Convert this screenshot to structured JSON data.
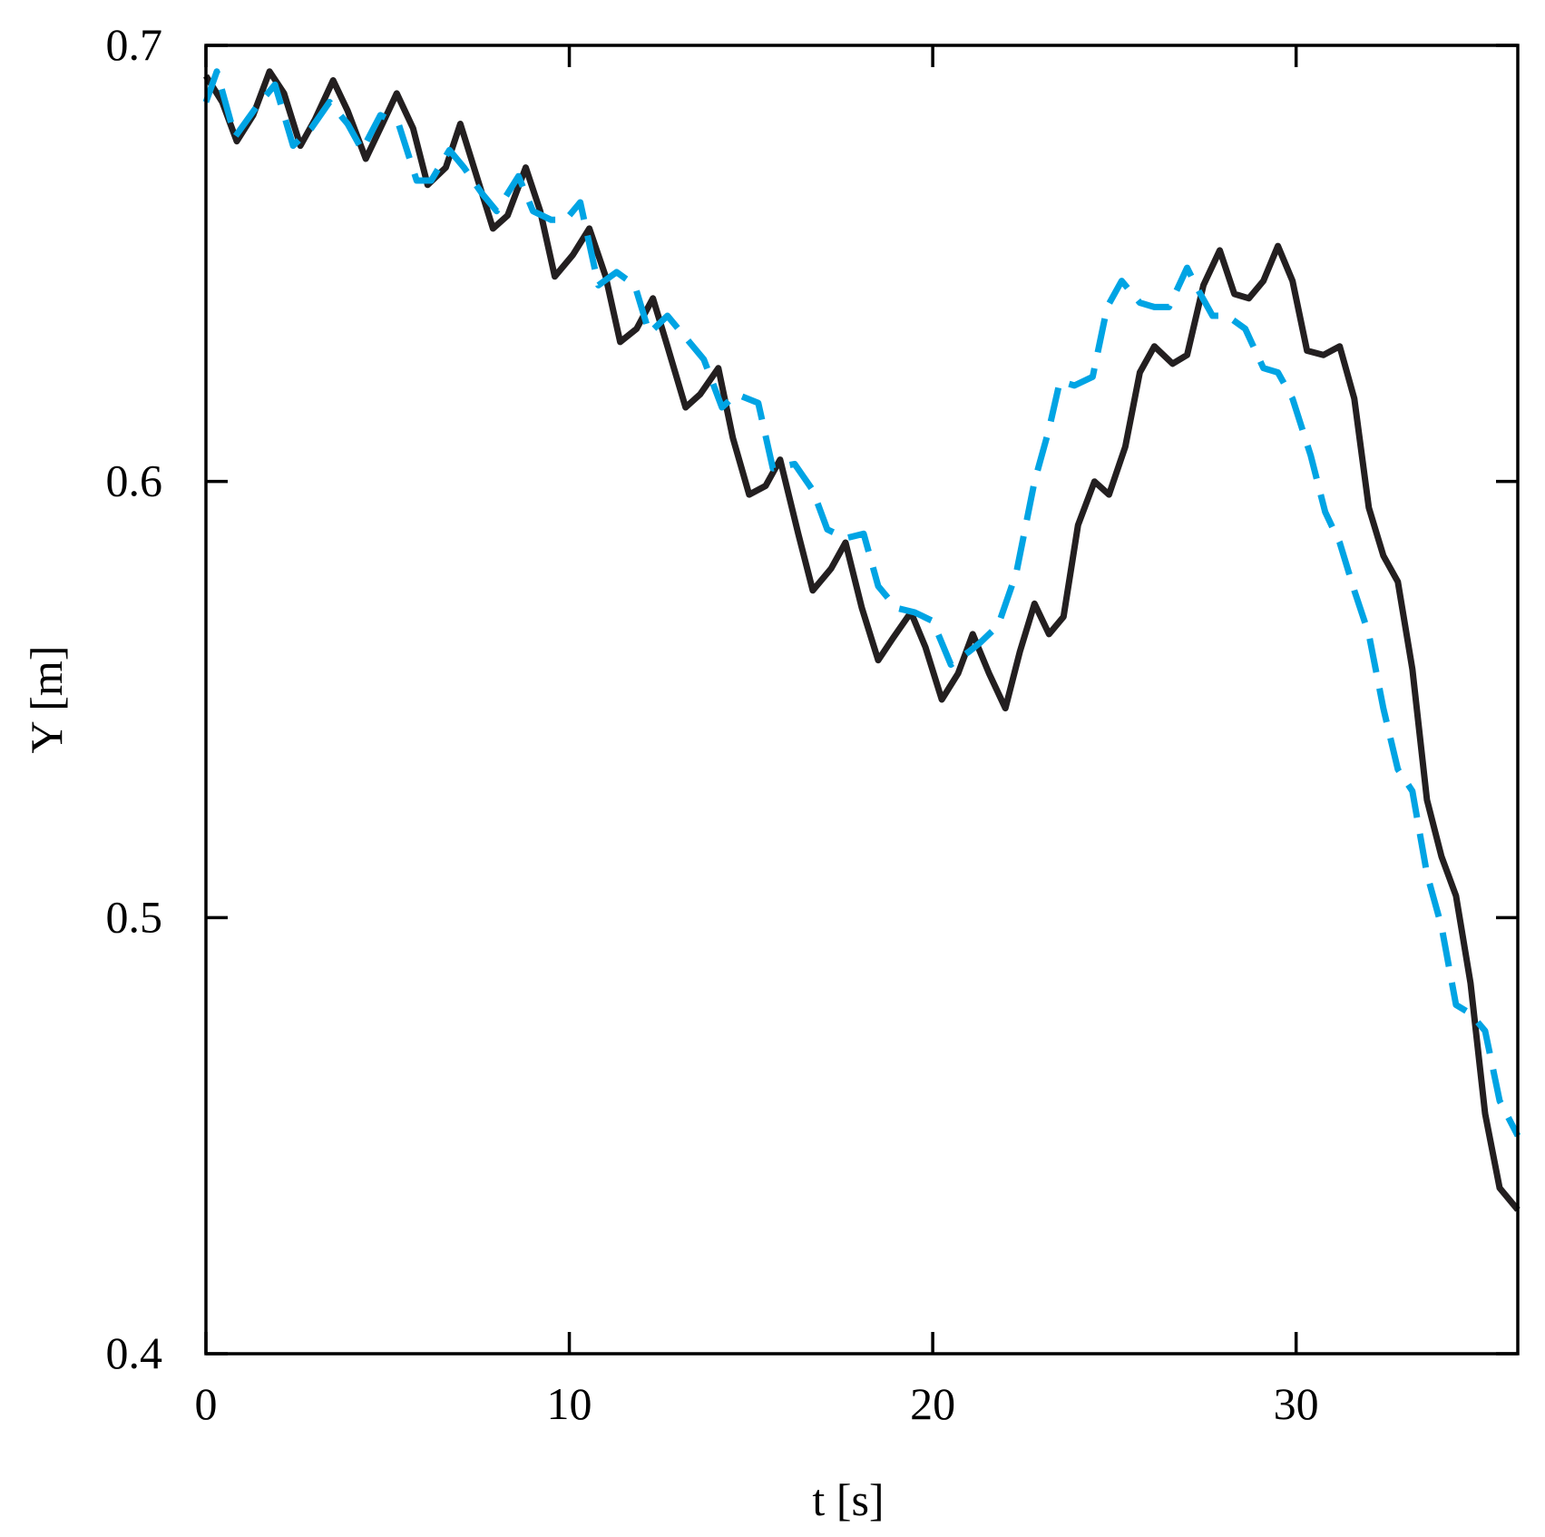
{
  "chart_data": {
    "type": "line",
    "title": "",
    "xlabel": "t [s]",
    "ylabel": "Y [m]",
    "xlim": [
      0,
      36.1
    ],
    "ylim": [
      0.4,
      0.7
    ],
    "xticks": [
      0,
      10,
      20,
      30
    ],
    "yticks": [
      0.4,
      0.5,
      0.6,
      0.7
    ],
    "xtick_labels": [
      "0",
      "10",
      "20",
      "30"
    ],
    "ytick_labels": [
      "0.4",
      "0.5",
      "0.6",
      "0.7"
    ],
    "grid": false,
    "legend": "none",
    "series": [
      {
        "color": "#231f20",
        "style": "solid",
        "x": [
          0,
          0.45,
          0.85,
          1.3,
          1.75,
          2.15,
          2.6,
          3.0,
          3.5,
          3.9,
          4.4,
          4.8,
          5.25,
          5.7,
          6.1,
          6.6,
          7.0,
          7.45,
          7.9,
          8.3,
          8.8,
          9.2,
          9.6,
          10.1,
          10.55,
          11.0,
          11.4,
          11.85,
          12.3,
          12.7,
          13.2,
          13.6,
          14.1,
          14.5,
          14.95,
          15.4,
          15.8,
          16.3,
          16.7,
          17.2,
          17.6,
          18.05,
          18.5,
          18.9,
          19.4,
          19.8,
          20.25,
          20.7,
          21.1,
          21.55,
          22.0,
          22.4,
          22.8,
          23.2,
          23.6,
          24.0,
          24.45,
          24.85,
          25.3,
          25.7,
          26.1,
          26.6,
          27.0,
          27.45,
          27.9,
          28.3,
          28.7,
          29.1,
          29.5,
          29.9,
          30.3,
          30.75,
          31.2,
          31.6,
          32.0,
          32.4,
          32.8,
          33.2,
          33.6,
          34.0,
          34.4,
          34.8,
          35.2,
          35.6,
          36.1
        ],
        "y": [
          0.693,
          0.687,
          0.678,
          0.684,
          0.694,
          0.689,
          0.677,
          0.683,
          0.692,
          0.685,
          0.674,
          0.681,
          0.689,
          0.681,
          0.668,
          0.672,
          0.682,
          0.67,
          0.658,
          0.661,
          0.672,
          0.662,
          0.647,
          0.652,
          0.658,
          0.647,
          0.632,
          0.635,
          0.642,
          0.631,
          0.617,
          0.62,
          0.626,
          0.61,
          0.597,
          0.599,
          0.605,
          0.588,
          0.575,
          0.58,
          0.586,
          0.571,
          0.559,
          0.564,
          0.57,
          0.562,
          0.55,
          0.556,
          0.565,
          0.556,
          0.548,
          0.561,
          0.572,
          0.565,
          0.569,
          0.59,
          0.6,
          0.597,
          0.608,
          0.625,
          0.631,
          0.627,
          0.629,
          0.645,
          0.653,
          0.643,
          0.642,
          0.646,
          0.654,
          0.646,
          0.63,
          0.629,
          0.631,
          0.619,
          0.594,
          0.583,
          0.577,
          0.557,
          0.527,
          0.514,
          0.505,
          0.485,
          0.455,
          0.438,
          0.433
        ]
      },
      {
        "color": "#00a4e4",
        "style": "dashed",
        "x": [
          0,
          0.3,
          0.8,
          1.4,
          1.9,
          2.4,
          2.9,
          3.4,
          3.9,
          4.3,
          4.8,
          5.3,
          5.8,
          6.2,
          6.7,
          7.1,
          7.6,
          8.0,
          8.6,
          9.0,
          9.5,
          9.9,
          10.3,
          10.8,
          11.3,
          11.8,
          12.2,
          12.7,
          13.2,
          13.7,
          14.2,
          14.6,
          15.2,
          15.6,
          16.2,
          16.7,
          17.1,
          17.6,
          18.1,
          18.5,
          19.0,
          19.5,
          20.0,
          20.5,
          21.0,
          21.3,
          21.8,
          22.3,
          22.8,
          23.2,
          23.5,
          23.9,
          24.4,
          24.8,
          25.2,
          25.7,
          26.1,
          26.5,
          27.0,
          27.3,
          27.7,
          28.1,
          28.6,
          29.1,
          29.5,
          29.9,
          30.4,
          30.8,
          31.2,
          31.6,
          32.0,
          32.4,
          32.8,
          33.2,
          33.6,
          34.0,
          34.4,
          34.8,
          35.2,
          35.6,
          36.1
        ],
        "y": [
          0.687,
          0.694,
          0.679,
          0.686,
          0.691,
          0.677,
          0.681,
          0.687,
          0.682,
          0.676,
          0.684,
          0.682,
          0.669,
          0.669,
          0.676,
          0.672,
          0.666,
          0.662,
          0.67,
          0.662,
          0.66,
          0.66,
          0.664,
          0.645,
          0.648,
          0.645,
          0.634,
          0.638,
          0.633,
          0.628,
          0.617,
          0.62,
          0.618,
          0.603,
          0.604,
          0.598,
          0.589,
          0.587,
          0.588,
          0.576,
          0.571,
          0.57,
          0.568,
          0.558,
          0.561,
          0.563,
          0.567,
          0.579,
          0.6,
          0.612,
          0.623,
          0.622,
          0.624,
          0.64,
          0.646,
          0.641,
          0.64,
          0.64,
          0.649,
          0.644,
          0.638,
          0.638,
          0.635,
          0.626,
          0.625,
          0.619,
          0.606,
          0.593,
          0.586,
          0.575,
          0.565,
          0.548,
          0.534,
          0.529,
          0.51,
          0.498,
          0.48,
          0.478,
          0.474,
          0.458,
          0.45
        ]
      }
    ]
  }
}
